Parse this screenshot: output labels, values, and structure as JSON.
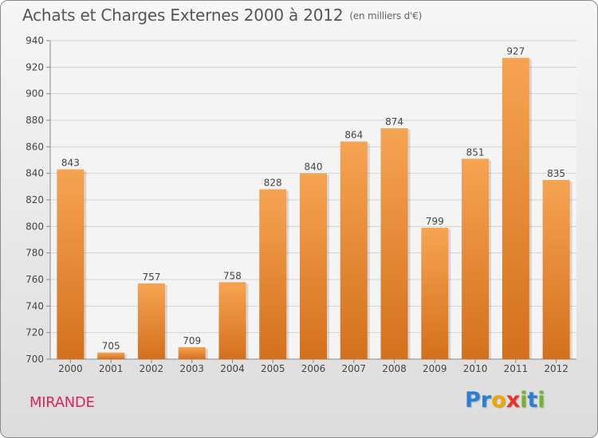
{
  "header": {
    "title": "Achats et Charges Externes 2000 à 2012",
    "subtitle": "(en milliers d'€)"
  },
  "footer": {
    "commune": "MIRANDE",
    "brand_letters": [
      {
        "ch": "P",
        "color": "#2a7fd4"
      },
      {
        "ch": "r",
        "color": "#2a7fd4"
      },
      {
        "ch": "o",
        "color": "#f2a600"
      },
      {
        "ch": "x",
        "color": "#e8322c"
      },
      {
        "ch": "i",
        "color": "#6fb62c"
      },
      {
        "ch": "t",
        "color": "#2a7fd4"
      },
      {
        "ch": "i",
        "color": "#6fb62c"
      }
    ]
  },
  "colors": {
    "bar_top": "#f6a452",
    "bar_bottom": "#d4701c",
    "commune": "#d8265c"
  },
  "chart_data": {
    "type": "bar",
    "categories": [
      "2000",
      "2001",
      "2002",
      "2003",
      "2004",
      "2005",
      "2006",
      "2007",
      "2008",
      "2009",
      "2010",
      "2011",
      "2012"
    ],
    "values": [
      843,
      705,
      757,
      709,
      758,
      828,
      840,
      864,
      874,
      799,
      851,
      927,
      835
    ],
    "ylim": [
      700,
      940
    ],
    "yticks": [
      700,
      720,
      740,
      760,
      780,
      800,
      820,
      840,
      860,
      880,
      900,
      920,
      940
    ],
    "grid": true,
    "data_labels": true
  }
}
